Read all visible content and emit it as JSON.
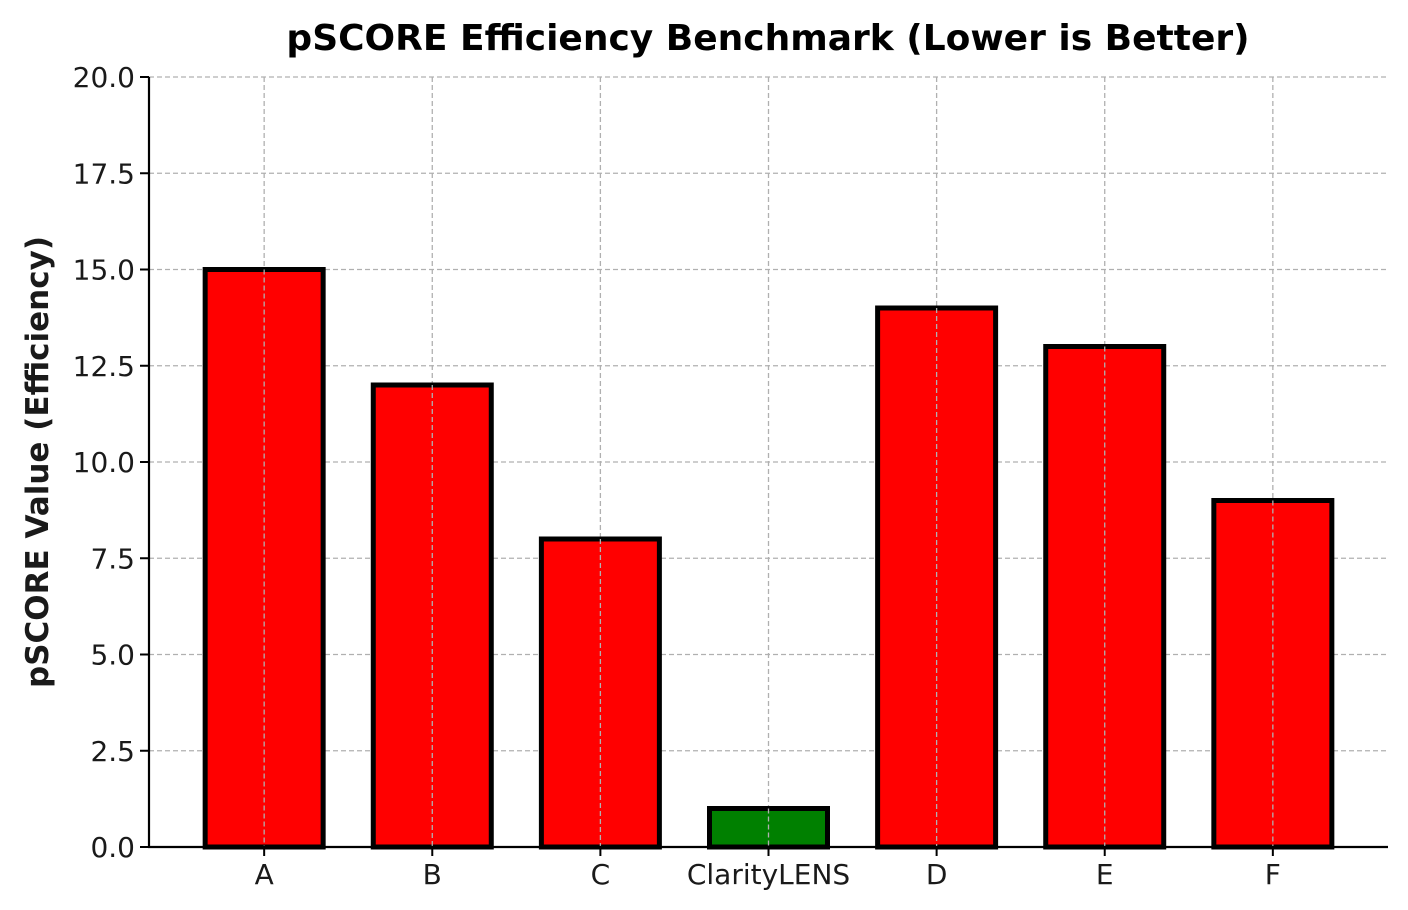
{
  "chart_data": {
    "type": "bar",
    "title": "pSCORE Efficiency Benchmark (Lower is Better)",
    "xlabel": "",
    "ylabel": "pSCORE Value (Efficiency)",
    "categories": [
      "A",
      "B",
      "C",
      "ClarityLENS",
      "D",
      "E",
      "F"
    ],
    "values": [
      15,
      12,
      8,
      1,
      14,
      13,
      9
    ],
    "bar_colors": [
      "#ff0000",
      "#ff0000",
      "#ff0000",
      "#008000",
      "#ff0000",
      "#ff0000",
      "#ff0000"
    ],
    "edge_color": "#000000",
    "ylim": [
      0,
      20
    ],
    "yticks": [
      "0.0",
      "2.5",
      "5.0",
      "7.5",
      "10.0",
      "12.5",
      "15.0",
      "17.5",
      "20.0"
    ],
    "grid": true,
    "legend": "none"
  }
}
